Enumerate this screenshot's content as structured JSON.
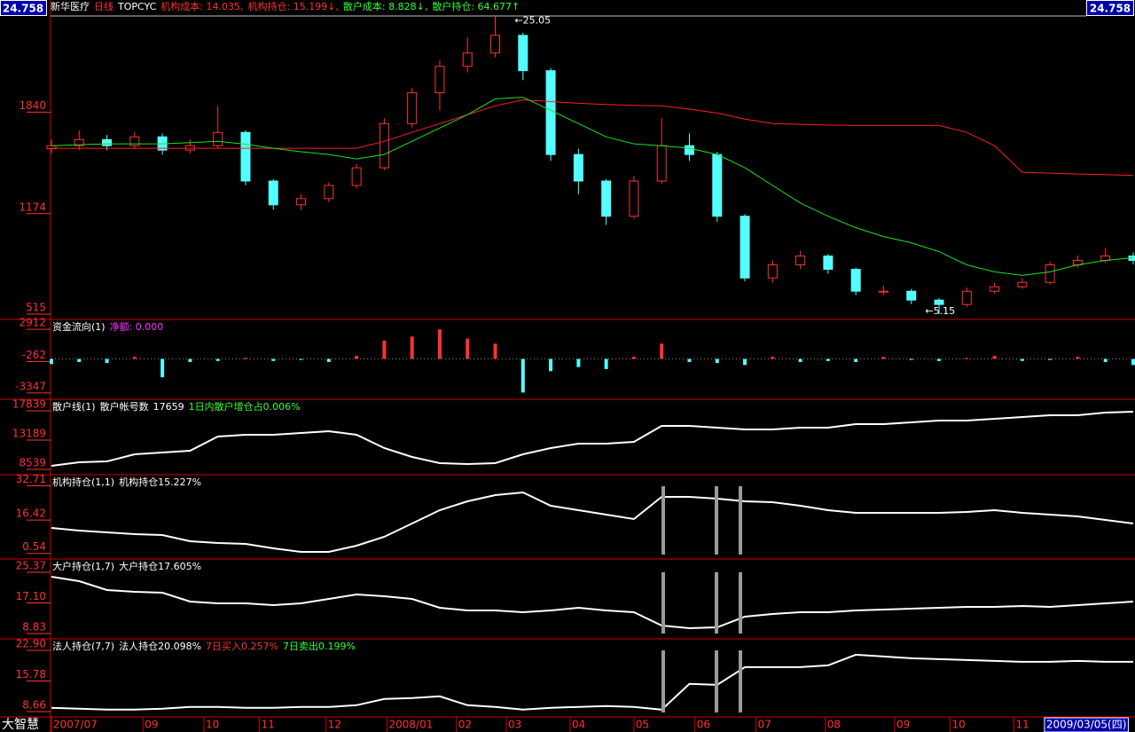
{
  "chart_data": [
    {
      "type": "candlestick",
      "header": [
        {
          "text": "新华医疗",
          "color": "#ffffff"
        },
        {
          "text": "日线",
          "color": "#ff3232"
        },
        {
          "text": "TOPCYC",
          "color": "#ffffff"
        },
        {
          "text": "机构成本: 14.035,",
          "color": "#ff3232"
        },
        {
          "text": "机构持仓: 15.199↓,",
          "color": "#ff3232"
        },
        {
          "text": "散户成本: 8.828↓,",
          "color": "#32ff32"
        },
        {
          "text": "散户持仓: 64.677↑",
          "color": "#32ff32"
        }
      ],
      "last_price": 24.758,
      "xlim": [
        0,
        39
      ],
      "ylim": [
        480,
        2471
      ],
      "yticks": [
        515,
        1174,
        1840
      ],
      "up_color": "#ff3232",
      "down_color": "#54ffff",
      "open": [
        1600,
        1620,
        1660,
        1620,
        1678,
        1591,
        1620,
        1707,
        1388,
        1232,
        1273,
        1359,
        1475,
        1765,
        1967,
        2141,
        2228,
        2344,
        2112,
        1562,
        1388,
        1157,
        1388,
        1620,
        1562,
        1157,
        752,
        838,
        896,
        809,
        665,
        665,
        607,
        578,
        665,
        694,
        723,
        838,
        867,
        896
      ],
      "high": [
        1660,
        1720,
        1690,
        1710,
        1700,
        1660,
        1880,
        1720,
        1400,
        1300,
        1380,
        1500,
        1800,
        2000,
        2180,
        2330,
        2471,
        2360,
        2130,
        1600,
        1400,
        1420,
        1800,
        1700,
        1580,
        1170,
        870,
        930,
        910,
        820,
        700,
        680,
        620,
        690,
        720,
        750,
        860,
        900,
        950,
        920
      ],
      "low": [
        1570,
        1590,
        1590,
        1600,
        1560,
        1570,
        1600,
        1360,
        1200,
        1200,
        1250,
        1340,
        1460,
        1740,
        1850,
        2100,
        2200,
        2050,
        1520,
        1300,
        1100,
        1140,
        1370,
        1520,
        1120,
        730,
        720,
        810,
        780,
        640,
        640,
        580,
        515,
        560,
        650,
        680,
        710,
        820,
        850,
        840
      ],
      "close": [
        1620,
        1660,
        1620,
        1678,
        1591,
        1620,
        1707,
        1388,
        1232,
        1273,
        1359,
        1475,
        1765,
        1967,
        2141,
        2228,
        2344,
        2112,
        1562,
        1388,
        1157,
        1388,
        1620,
        1562,
        1157,
        752,
        838,
        896,
        809,
        665,
        665,
        607,
        578,
        665,
        694,
        723,
        838,
        867,
        896,
        867
      ],
      "series": [
        {
          "color": "#ff2020",
          "values": [
            1603,
            1603,
            1603,
            1603,
            1603,
            1603,
            1603,
            1603,
            1603,
            1603,
            1603,
            1603,
            1649,
            1707,
            1765,
            1823,
            1881,
            1921,
            1909,
            1898,
            1890,
            1885,
            1881,
            1860,
            1834,
            1794,
            1765,
            1760,
            1755,
            1753,
            1753,
            1753,
            1753,
            1707,
            1620,
            1446,
            1440,
            1434,
            1430,
            1425
          ]
        },
        {
          "color": "#20e020",
          "values": [
            1620,
            1626,
            1632,
            1632,
            1632,
            1640,
            1649,
            1630,
            1603,
            1580,
            1562,
            1533,
            1562,
            1649,
            1736,
            1823,
            1927,
            1938,
            1852,
            1765,
            1678,
            1632,
            1620,
            1603,
            1562,
            1475,
            1359,
            1244,
            1157,
            1082,
            1024,
            983,
            925,
            838,
            792,
            769,
            792,
            838,
            867,
            885
          ]
        }
      ],
      "annotations": [
        {
          "text": "←25.05",
          "x": 16.7,
          "y": 2440
        },
        {
          "text": "←5.15",
          "x": 31.5,
          "y": 531
        }
      ]
    },
    {
      "type": "bar",
      "header": [
        {
          "text": "资金流向(1)",
          "color": "#ffffff"
        },
        {
          "text": "净额: 0.000",
          "color": "#ff32ff"
        }
      ],
      "xlim": [
        0,
        39
      ],
      "ylim": [
        -3963,
        3880
      ],
      "yticks": [
        2912,
        -262,
        -3347
      ],
      "up_color": "#ff3232",
      "down_color": "#54ffff",
      "values": [
        -500,
        -300,
        -400,
        200,
        -1800,
        -300,
        -200,
        100,
        -200,
        -100,
        -300,
        300,
        1800,
        2200,
        2900,
        2000,
        1500,
        -3300,
        -1200,
        -800,
        -1000,
        200,
        1500,
        -300,
        -400,
        -600,
        200,
        -300,
        -200,
        -300,
        200,
        -100,
        -200,
        100,
        300,
        -200,
        -100,
        200,
        -300,
        -600
      ]
    },
    {
      "type": "line",
      "header": [
        {
          "text": "散户线(1)",
          "color": "#ffffff"
        },
        {
          "text": "散户帐号数",
          "color": "#ffffff"
        },
        {
          "text": "17659",
          "color": "#ffffff"
        },
        {
          "text": "1日内散户增仓占0.006%",
          "color": "#32ff32"
        }
      ],
      "xlim": [
        0,
        39
      ],
      "ylim": [
        7693,
        19672
      ],
      "yticks": [
        17839,
        13189,
        8539
      ],
      "series": [
        {
          "color": "#ffffff",
          "values": [
            9097,
            9661,
            9802,
            10930,
            11212,
            11494,
            13750,
            14032,
            14032,
            14314,
            14596,
            14032,
            11917,
            10507,
            9520,
            9379,
            9520,
            10930,
            11917,
            12622,
            12622,
            12904,
            15442,
            15442,
            15160,
            14878,
            14878,
            15160,
            15160,
            15724,
            15724,
            16006,
            16288,
            16288,
            16570,
            16852,
            17134,
            17134,
            17557,
            17698
          ]
        }
      ]
    },
    {
      "type": "line",
      "header": [
        {
          "text": "机构持仓(1,1)",
          "color": "#ffffff"
        },
        {
          "text": "机构持仓15.227%",
          "color": "#ffffff"
        }
      ],
      "xlim": [
        0,
        39
      ],
      "ylim": [
        -2.1,
        38.0
      ],
      "yticks": [
        32.71,
        16.42,
        0.54
      ],
      "series": [
        {
          "color": "#ffffff",
          "values": [
            12.67,
            11.41,
            10.56,
            9.72,
            9.3,
            6.34,
            5.5,
            5.08,
            2.97,
            1.28,
            1.28,
            4.23,
            8.45,
            14.78,
            21.12,
            25.34,
            28.29,
            29.56,
            23.23,
            21.12,
            19.01,
            16.9,
            27.45,
            27.45,
            26.6,
            25.34,
            24.91,
            23.23,
            21.12,
            19.85,
            19.85,
            19.85,
            19.85,
            20.27,
            21.12,
            19.85,
            19.01,
            18.16,
            16.47,
            14.78
          ]
        }
      ]
    },
    {
      "type": "line",
      "header": [
        {
          "text": "大户持仓(1,7)",
          "color": "#ffffff"
        },
        {
          "text": "大户持仓17.605%",
          "color": "#ffffff"
        }
      ],
      "xlim": [
        0,
        39
      ],
      "ylim": [
        7.39,
        28.97
      ],
      "yticks": [
        25.37,
        {
          "value": 17.1,
          "label": "17.10"
        },
        8.83
      ],
      "series": [
        {
          "color": "#ffffff",
          "values": [
            24.17,
            22.97,
            20.58,
            20.1,
            19.86,
            17.46,
            16.98,
            16.98,
            16.5,
            16.98,
            18.18,
            19.38,
            18.9,
            18.18,
            15.78,
            15.06,
            15.06,
            14.58,
            15.06,
            15.78,
            15.06,
            14.58,
            10.99,
            10.27,
            10.51,
            13.38,
            14.1,
            14.58,
            14.58,
            15.06,
            15.3,
            15.54,
            15.78,
            16.02,
            16.02,
            16.26,
            16.02,
            16.5,
            16.98,
            17.46
          ]
        }
      ]
    },
    {
      "type": "line",
      "header": [
        {
          "text": "法人持仓(7,7)",
          "color": "#ffffff"
        },
        {
          "text": "法人持仓20.098%",
          "color": "#ffffff"
        },
        {
          "text": "7日买入0.257%",
          "color": "#ff3232"
        },
        {
          "text": "7日卖出0.199%",
          "color": "#32ff32"
        }
      ],
      "xlim": [
        0,
        39
      ],
      "ylim": [
        7.42,
        25.58
      ],
      "yticks": [
        {
          "value": 22.9,
          "label": "22.90"
        },
        15.78,
        8.66
      ],
      "series": [
        {
          "color": "#ffffff",
          "values": [
            9.54,
            9.33,
            9.12,
            9.12,
            9.33,
            9.74,
            9.74,
            9.54,
            9.54,
            9.74,
            9.74,
            10.15,
            11.59,
            11.8,
            12.21,
            10.15,
            9.74,
            9.12,
            9.54,
            9.74,
            9.95,
            9.74,
            9.12,
            15.09,
            14.88,
            19.0,
            19.0,
            19.0,
            19.41,
            21.88,
            21.47,
            21.06,
            20.85,
            20.64,
            20.44,
            20.23,
            20.23,
            20.44,
            20.23,
            20.23
          ]
        }
      ],
      "xticks": [
        {
          "value": 0,
          "label": "2007/07"
        },
        {
          "value": 3.3,
          "label": "09"
        },
        {
          "value": 5.5,
          "label": "10"
        },
        {
          "value": 7.5,
          "label": "11"
        },
        {
          "value": 9.9,
          "label": "12"
        },
        {
          "value": 12.1,
          "label": "2008/01"
        },
        {
          "value": 14.6,
          "label": "02"
        },
        {
          "value": 16.4,
          "label": "03"
        },
        {
          "value": 18.7,
          "label": "04"
        },
        {
          "value": 21,
          "label": "05"
        },
        {
          "value": 23.2,
          "label": "06"
        },
        {
          "value": 25.4,
          "label": "07"
        },
        {
          "value": 27.9,
          "label": "08"
        },
        {
          "value": 30.4,
          "label": "09"
        },
        {
          "value": 32.4,
          "label": "10"
        },
        {
          "value": 34.7,
          "label": "11"
        }
      ],
      "cursor_label": {
        "value": 35.8,
        "label": "2009/03/05(四)"
      }
    }
  ],
  "footer": {
    "brand": "大智慧"
  }
}
